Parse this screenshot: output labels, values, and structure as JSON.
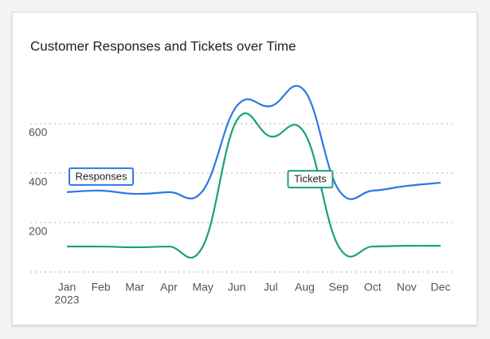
{
  "chart_data": {
    "type": "line",
    "title": "Customer Responses and Tickets over Time",
    "categories": [
      "Jan",
      "Feb",
      "Mar",
      "Apr",
      "May",
      "Jun",
      "Jul",
      "Aug",
      "Sep",
      "Oct",
      "Nov",
      "Dec"
    ],
    "year_label": "2023",
    "series": [
      {
        "name": "Responses",
        "color": "#2b78e4",
        "values": [
          323,
          329,
          316,
          323,
          329,
          671,
          671,
          732,
          332,
          329,
          348,
          361
        ]
      },
      {
        "name": "Tickets",
        "color": "#17a07a",
        "values": [
          103,
          103,
          100,
          103,
          103,
          613,
          548,
          561,
          103,
          103,
          106,
          106
        ]
      }
    ],
    "ylim": [
      0,
      800
    ],
    "yticks": [
      200,
      400,
      600
    ],
    "grid": true
  }
}
